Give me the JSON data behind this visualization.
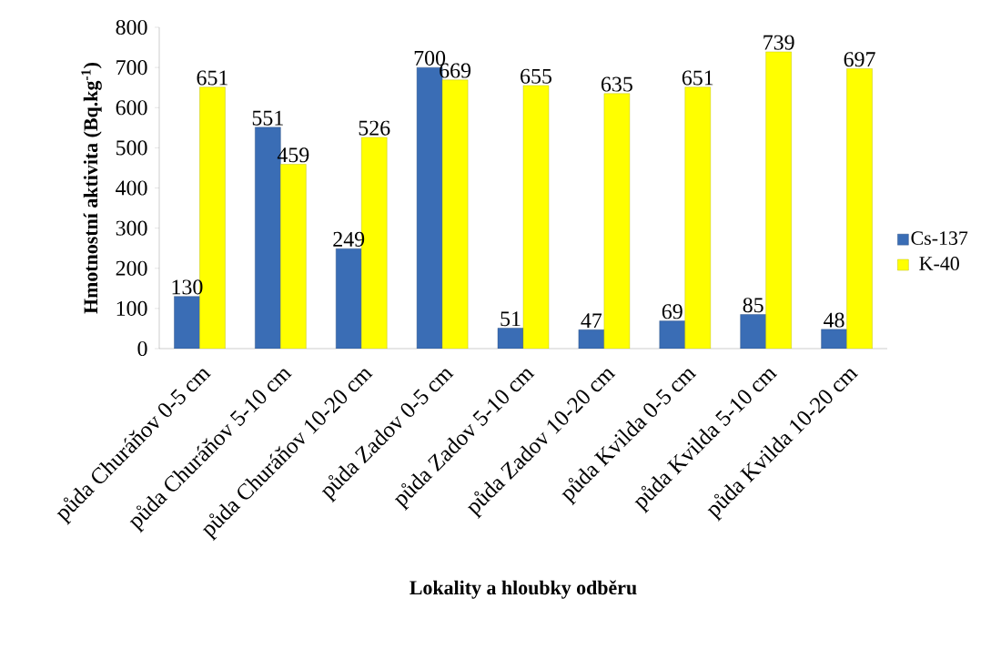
{
  "chart_data": {
    "type": "bar",
    "xlabel": "Lokality a hloubky odběru",
    "ylabel": "Hmotnostní aktivita (Bq.kg$^{-1}$)",
    "categories": [
      "půda Churáňov 0-5 cm",
      "půda Churáňov 5-10 cm",
      "půda Churáňov 10-20 cm",
      "půda Zadov 0-5 cm",
      "půda Zadov 5-10 cm",
      "půda Zadov 10-20 cm",
      "půda Kvilda 0-5 cm",
      "půda Kvilda 5-10 cm",
      "půda Kvilda 10-20 cm"
    ],
    "series": [
      {
        "name": "Cs-137",
        "color": "#3a6db5",
        "values": [
          130,
          551,
          249,
          700,
          51,
          47,
          69,
          85,
          48
        ]
      },
      {
        "name": "K-40",
        "color": "#ffff00",
        "values": [
          651,
          459,
          526,
          669,
          655,
          635,
          651,
          739,
          697
        ]
      }
    ],
    "ylim": [
      0,
      800
    ],
    "yticks": [
      0,
      100,
      200,
      300,
      400,
      500,
      600,
      700,
      800
    ],
    "grid": false,
    "legend": "right",
    "data_labels": true
  }
}
